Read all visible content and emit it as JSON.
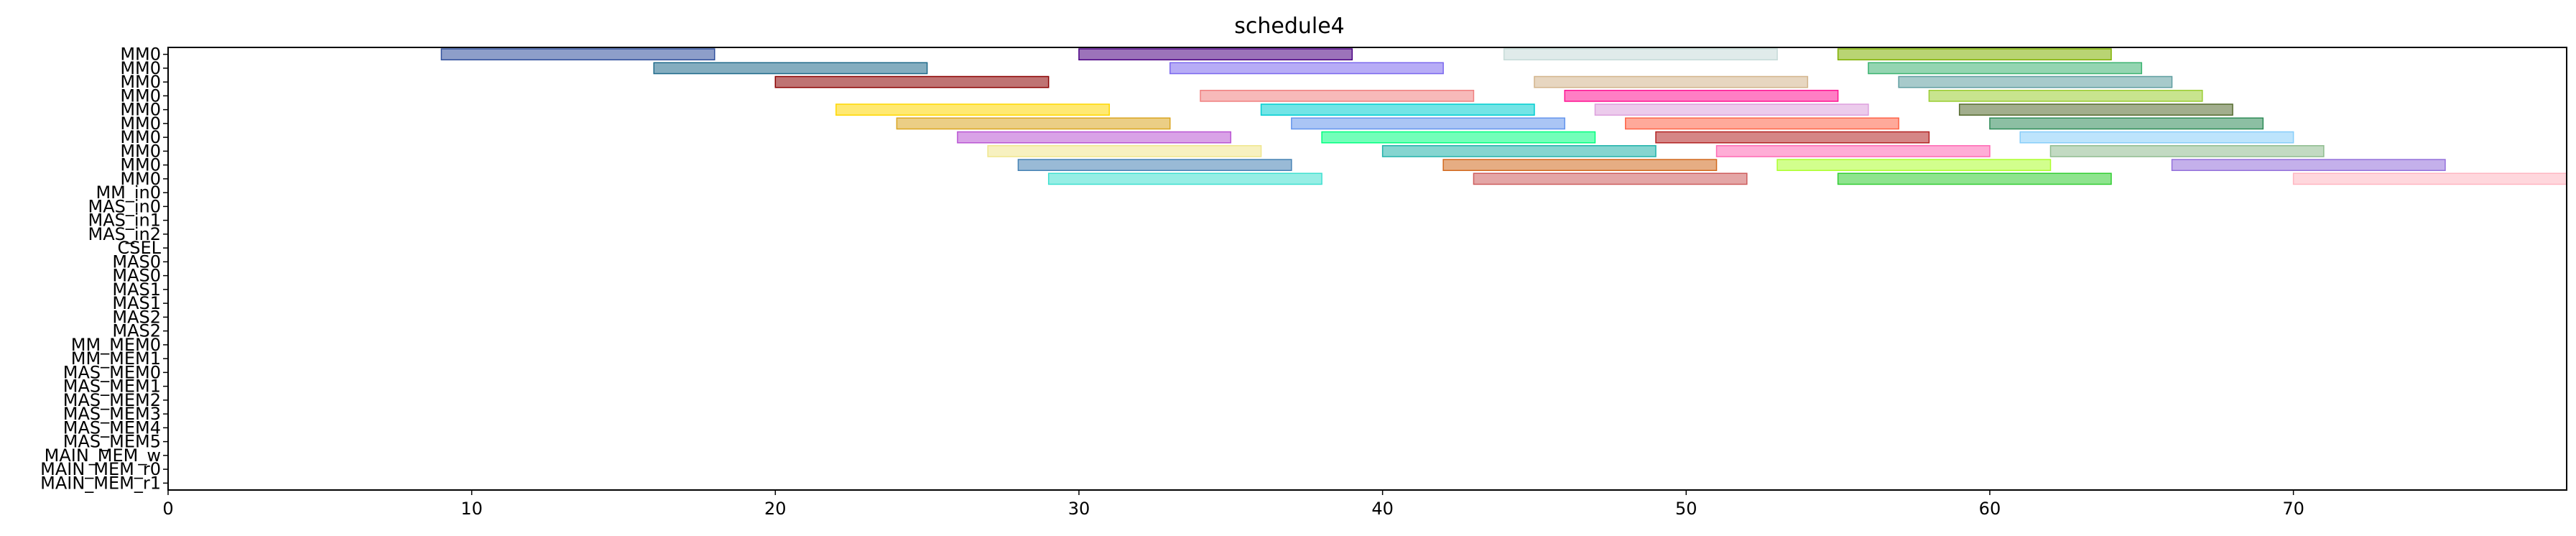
{
  "chart_data": {
    "type": "gantt",
    "title": "schedule4",
    "xlabel": "",
    "ylabel": "",
    "xlim": [
      0,
      79
    ],
    "x_ticks": [
      0,
      10,
      20,
      30,
      40,
      50,
      60,
      70
    ],
    "grid": false,
    "legend": "none",
    "rows": [
      "MM0",
      "MM0",
      "MM0",
      "MM0",
      "MM0",
      "MM0",
      "MM0",
      "MM0",
      "MM0",
      "MM0",
      "MM_in0",
      "MAS_in0",
      "MAS_in1",
      "MAS_in2",
      "CSEL",
      "MAS0",
      "MAS0",
      "MAS1",
      "MAS1",
      "MAS2",
      "MAS2",
      "MM_MEM0",
      "MM_MEM1",
      "MAS_MEM0",
      "MAS_MEM1",
      "MAS_MEM2",
      "MAS_MEM3",
      "MAS_MEM4",
      "MAS_MEM5",
      "MAIN_MEM_w",
      "MAIN_MEM_r0",
      "MAIN_MEM_r1"
    ],
    "palette": [
      "#2f4f9c",
      "#4b0082",
      "#c6dbd8",
      "#7fb000",
      "#1f6a8a",
      "#7b68ee",
      "#3cb371",
      "#8b0000",
      "#d3b48c",
      "#5f9ea0",
      "#f08080",
      "#ff1493",
      "#9acd32",
      "#ffd700",
      "#00ced1",
      "#dda0dd",
      "#556b2f",
      "#daa520",
      "#6495ed",
      "#ff6347",
      "#2e8b57",
      "#ba55d3",
      "#00ff7f",
      "#b22222",
      "#87cefa",
      "#f0e68c",
      "#20b2aa",
      "#ff69b4",
      "#8fbc8f",
      "#4682b4",
      "#d2691e",
      "#adff2f",
      "#9370db",
      "#40e0d0",
      "#cd5c5c",
      "#32cd32",
      "#ffb6c1",
      "#808000",
      "#e9967a",
      "#1e90ff",
      "#c71585",
      "#66cdaa",
      "#bdb76b",
      "#0000cd",
      "#ff8c00",
      "#8b4513",
      "#00fa9a",
      "#9932cc",
      "#fa8072",
      "#deb887"
    ],
    "bars": [
      {
        "row": 0,
        "start": 9,
        "end": 18
      },
      {
        "row": 0,
        "start": 30,
        "end": 39
      },
      {
        "row": 0,
        "start": 44,
        "end": 53
      },
      {
        "row": 0,
        "start": 55,
        "end": 64
      },
      {
        "row": 1,
        "start": 16,
        "end": 25
      },
      {
        "row": 1,
        "start": 33,
        "end": 42
      },
      {
        "row": 1,
        "start": 56,
        "end": 65
      },
      {
        "row": 2,
        "start": 20,
        "end": 29
      },
      {
        "row": 2,
        "start": 45,
        "end": 54
      },
      {
        "row": 2,
        "start": 57,
        "end": 66
      },
      {
        "row": 3,
        "start": 34,
        "end": 43
      },
      {
        "row": 3,
        "start": 46,
        "end": 55
      },
      {
        "row": 3,
        "start": 58,
        "end": 67
      },
      {
        "row": 4,
        "start": 22,
        "end": 31
      },
      {
        "row": 4,
        "start": 36,
        "end": 45
      },
      {
        "row": 4,
        "start": 47,
        "end": 56
      },
      {
        "row": 4,
        "start": 59,
        "end": 68
      },
      {
        "row": 5,
        "start": 24,
        "end": 33
      },
      {
        "row": 5,
        "start": 37,
        "end": 46
      },
      {
        "row": 5,
        "start": 48,
        "end": 57
      },
      {
        "row": 5,
        "start": 60,
        "end": 69
      },
      {
        "row": 6,
        "start": 26,
        "end": 35
      },
      {
        "row": 6,
        "start": 38,
        "end": 47
      },
      {
        "row": 6,
        "start": 49,
        "end": 58
      },
      {
        "row": 6,
        "start": 61,
        "end": 70
      },
      {
        "row": 7,
        "start": 27,
        "end": 36
      },
      {
        "row": 7,
        "start": 40,
        "end": 49
      },
      {
        "row": 7,
        "start": 51,
        "end": 60
      },
      {
        "row": 7,
        "start": 62,
        "end": 71
      },
      {
        "row": 8,
        "start": 28,
        "end": 37
      },
      {
        "row": 8,
        "start": 42,
        "end": 51
      },
      {
        "row": 8,
        "start": 53,
        "end": 62
      },
      {
        "row": 8,
        "start": 66,
        "end": 75
      },
      {
        "row": 9,
        "start": 29,
        "end": 38
      },
      {
        "row": 9,
        "start": 43,
        "end": 52
      },
      {
        "row": 9,
        "start": 55,
        "end": 64
      },
      {
        "row": 9,
        "start": 70,
        "end": 79
      }
    ],
    "bar_fill_opacity": 0.55
  }
}
